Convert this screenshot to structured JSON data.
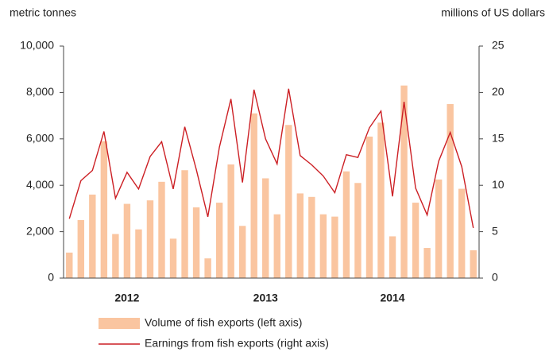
{
  "chart_data": {
    "type": "bar-line",
    "y_label": "metric tonnes",
    "y2_label": "millions of US dollars",
    "categories": [
      null,
      null,
      null,
      null,
      null,
      "2012",
      null,
      null,
      null,
      null,
      null,
      null,
      null,
      null,
      null,
      null,
      null,
      "2013",
      null,
      null,
      null,
      null,
      null,
      null,
      null,
      null,
      null,
      null,
      "2014",
      null,
      null,
      null,
      null,
      null,
      null,
      null
    ],
    "ylim": [
      0,
      10000
    ],
    "yticks": [
      0,
      {
        "value": 2000,
        "label": "2,000"
      },
      {
        "value": 4000,
        "label": "4,000"
      },
      {
        "value": 6000,
        "label": "6,000"
      },
      {
        "value": 8000,
        "label": "8,000"
      },
      {
        "value": 10000,
        "label": "10,000"
      }
    ],
    "y2lim": [
      0,
      25
    ],
    "y2ticks": [
      0,
      5,
      10,
      15,
      20,
      25
    ],
    "series": [
      {
        "name": "Volume of fish exports (left axis)",
        "type": "bar",
        "color": "#fac5a0",
        "values": [
          1100,
          2500,
          3600,
          5900,
          1900,
          3200,
          2100,
          3350,
          4150,
          1700,
          4650,
          3050,
          850,
          3250,
          4900,
          2250,
          7100,
          4300,
          2750,
          6600,
          3650,
          3500,
          2750,
          2650,
          4600,
          4100,
          6100,
          6700,
          1800,
          8300,
          3250,
          1300,
          4250,
          7500,
          3850,
          1200
        ]
      },
      {
        "name": "Earnings from fish exports (right axis)",
        "type": "line",
        "axis": "y2",
        "color": "#cc1f24",
        "values": [
          6.4,
          10.5,
          11.6,
          15.8,
          8.6,
          11.4,
          9.6,
          13.1,
          14.7,
          9.6,
          16.3,
          11.7,
          6.6,
          14.1,
          19.3,
          10.3,
          20.3,
          15.0,
          12.3,
          20.4,
          13.2,
          12.2,
          11.0,
          9.2,
          13.3,
          13.0,
          16.2,
          18.0,
          8.8,
          19.0,
          9.7,
          6.8,
          12.6,
          15.7,
          12.0,
          5.4
        ]
      }
    ]
  }
}
